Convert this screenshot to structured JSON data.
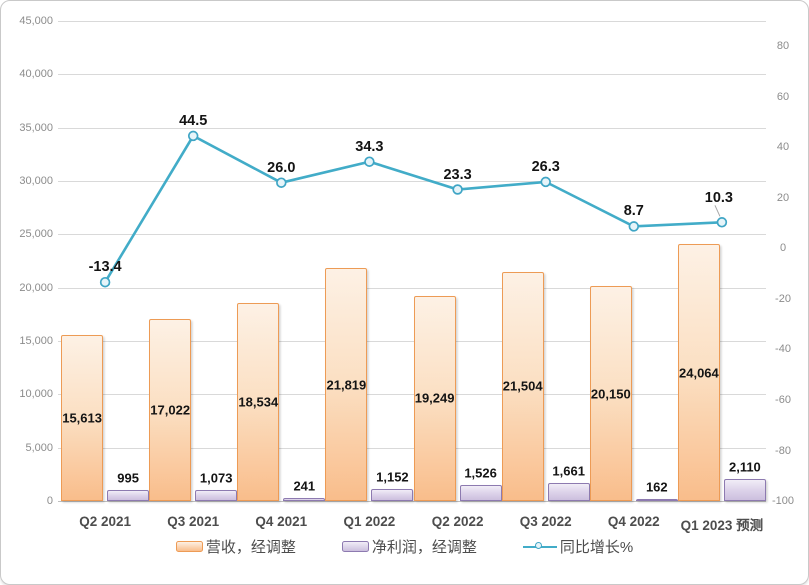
{
  "chart_data": {
    "type": "combo",
    "title": "",
    "categories": [
      "Q2 2021",
      "Q3 2021",
      "Q4 2021",
      "Q1 2022",
      "Q2 2022",
      "Q3 2022",
      "Q4 2022",
      "Q1 2023 预测"
    ],
    "series": [
      {
        "name": "营收，经调整",
        "type": "bar",
        "axis": "left",
        "color": "#F5A662",
        "values": [
          15613,
          17022,
          18534,
          21819,
          19249,
          21504,
          20150,
          24064
        ],
        "labels": [
          "15,613",
          "17,022",
          "18,534",
          "21,819",
          "19,249",
          "21,504",
          "20,150",
          "24,064"
        ],
        "label_position": "center"
      },
      {
        "name": "净利润，经调整",
        "type": "bar",
        "axis": "left",
        "color": "#B2A1C7",
        "values": [
          995,
          1073,
          241,
          1152,
          1526,
          1661,
          162,
          2110
        ],
        "labels": [
          "995",
          "1,073",
          "241",
          "1,152",
          "1,526",
          "1,661",
          "162",
          "2,110"
        ],
        "label_position": "outside-end"
      },
      {
        "name": "同比增长%",
        "type": "line",
        "axis": "right",
        "color": "#42ACC8",
        "values": [
          -13.4,
          44.5,
          26.0,
          34.3,
          23.3,
          26.3,
          8.7,
          10.3
        ],
        "labels": [
          "-13.4",
          "44.5",
          "26.0",
          "34.3",
          "23.3",
          "26.3",
          "8.7",
          "10.3"
        ],
        "label_position": "above",
        "last_label_has_leader_line": true
      }
    ],
    "left_axis": {
      "min": 0,
      "max": 45000,
      "step": 5000,
      "tick_labels": [
        "0",
        "5,000",
        "10,000",
        "15,000",
        "20,000",
        "25,000",
        "30,000",
        "35,000",
        "40,000",
        "45,000"
      ]
    },
    "right_axis": {
      "min": -100,
      "max": 90,
      "step": 20,
      "tick_labels": [
        "-100",
        "-80",
        "-60",
        "-40",
        "-20",
        "0",
        "20",
        "40",
        "60",
        "80"
      ]
    },
    "grid": true,
    "legend_position": "bottom"
  },
  "colors": {
    "revenue_border": "#ED9B55",
    "revenue_fill_top": "#FDF1E5",
    "revenue_fill_bottom": "#F9BD8B",
    "profit_border": "#8D7AB0",
    "profit_fill_top": "#F1EDF7",
    "profit_fill_bottom": "#CCBFDE",
    "growth_line": "#42ACC8",
    "marker_fill": "#E6F4F9",
    "gridline": "#D9D9D9",
    "axis_line": "#BFBFBF",
    "tick_text": "#8C8C8C",
    "data_label_text": "#141414",
    "category_text": "#4D4D4D",
    "frame_border": "#C9C9C9"
  }
}
